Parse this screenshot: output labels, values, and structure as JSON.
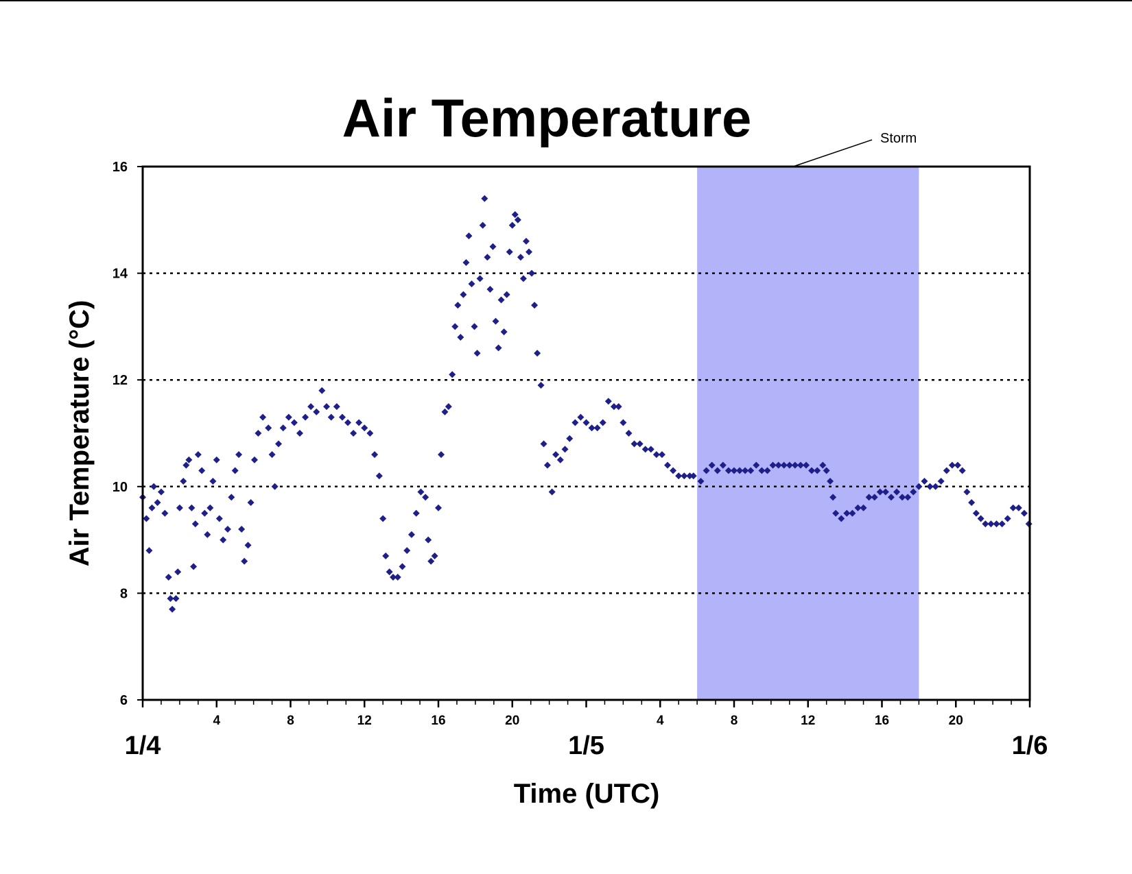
{
  "chart_data": {
    "type": "scatter",
    "title": "Air Temperature",
    "xlabel": "Time (UTC)",
    "ylabel": "Air Temperature (°C)",
    "x_unit": "hours since 1/4 00:00 UTC",
    "xlim": [
      0,
      48
    ],
    "ylim": [
      6,
      16
    ],
    "y_ticks": [
      "6",
      "8",
      "10",
      "12",
      "14",
      "16"
    ],
    "x_hour_ticks": [
      {
        "hour": 4,
        "label": "4"
      },
      {
        "hour": 8,
        "label": "8"
      },
      {
        "hour": 12,
        "label": "12"
      },
      {
        "hour": 16,
        "label": "16"
      },
      {
        "hour": 20,
        "label": "20"
      },
      {
        "hour": 28,
        "label": "4"
      },
      {
        "hour": 32,
        "label": "8"
      },
      {
        "hour": 36,
        "label": "12"
      },
      {
        "hour": 40,
        "label": "16"
      },
      {
        "hour": 44,
        "label": "20"
      }
    ],
    "x_day_ticks": [
      {
        "hour": 0,
        "label": "1/4"
      },
      {
        "hour": 24,
        "label": "1/5"
      },
      {
        "hour": 48,
        "label": "1/6"
      }
    ],
    "gridlines": [
      8,
      10,
      14,
      12
    ],
    "gridline_style": "dotted",
    "legend": "none",
    "marker": "diamond",
    "marker_color": "#1f1f8a",
    "shade_color": "#b3b3fa",
    "shaded_region": {
      "start": 30,
      "end": 42,
      "label": "Storm"
    },
    "series": [
      {
        "points": [
          [
            0.0,
            9.8
          ],
          [
            0.2,
            9.4
          ],
          [
            0.35,
            8.8
          ],
          [
            0.5,
            9.6
          ],
          [
            0.6,
            10.0
          ],
          [
            0.8,
            9.7
          ],
          [
            1.0,
            9.9
          ],
          [
            1.2,
            9.5
          ],
          [
            1.4,
            8.3
          ],
          [
            1.5,
            7.9
          ],
          [
            1.6,
            7.7
          ],
          [
            1.8,
            7.9
          ],
          [
            1.9,
            8.4
          ],
          [
            2.0,
            9.6
          ],
          [
            2.2,
            10.1
          ],
          [
            2.35,
            10.4
          ],
          [
            2.5,
            10.5
          ],
          [
            2.65,
            9.6
          ],
          [
            2.75,
            8.5
          ],
          [
            2.85,
            9.3
          ],
          [
            3.0,
            10.6
          ],
          [
            3.2,
            10.3
          ],
          [
            3.35,
            9.5
          ],
          [
            3.5,
            9.1
          ],
          [
            3.65,
            9.6
          ],
          [
            3.8,
            10.1
          ],
          [
            4.0,
            10.5
          ],
          [
            4.15,
            9.4
          ],
          [
            4.35,
            9.0
          ],
          [
            4.6,
            9.2
          ],
          [
            4.8,
            9.8
          ],
          [
            5.0,
            10.3
          ],
          [
            5.2,
            10.6
          ],
          [
            5.35,
            9.2
          ],
          [
            5.5,
            8.6
          ],
          [
            5.7,
            8.9
          ],
          [
            5.85,
            9.7
          ],
          [
            6.05,
            10.5
          ],
          [
            6.25,
            11.0
          ],
          [
            6.5,
            11.3
          ],
          [
            6.8,
            11.1
          ],
          [
            7.0,
            10.6
          ],
          [
            7.15,
            10.0
          ],
          [
            7.35,
            10.8
          ],
          [
            7.6,
            11.1
          ],
          [
            7.9,
            11.3
          ],
          [
            8.2,
            11.2
          ],
          [
            8.5,
            11.0
          ],
          [
            8.8,
            11.3
          ],
          [
            9.1,
            11.5
          ],
          [
            9.4,
            11.4
          ],
          [
            9.7,
            11.8
          ],
          [
            9.95,
            11.5
          ],
          [
            10.2,
            11.3
          ],
          [
            10.5,
            11.5
          ],
          [
            10.8,
            11.3
          ],
          [
            11.1,
            11.2
          ],
          [
            11.4,
            11.0
          ],
          [
            11.7,
            11.2
          ],
          [
            12.0,
            11.1
          ],
          [
            12.3,
            11.0
          ],
          [
            12.55,
            10.6
          ],
          [
            12.8,
            10.2
          ],
          [
            13.0,
            9.4
          ],
          [
            13.15,
            8.7
          ],
          [
            13.35,
            8.4
          ],
          [
            13.55,
            8.3
          ],
          [
            13.8,
            8.3
          ],
          [
            14.05,
            8.5
          ],
          [
            14.3,
            8.8
          ],
          [
            14.55,
            9.1
          ],
          [
            14.8,
            9.5
          ],
          [
            15.05,
            9.9
          ],
          [
            15.3,
            9.8
          ],
          [
            15.45,
            9.0
          ],
          [
            15.6,
            8.6
          ],
          [
            15.8,
            8.7
          ],
          [
            16.0,
            9.6
          ],
          [
            16.15,
            10.6
          ],
          [
            16.35,
            11.4
          ],
          [
            16.55,
            11.5
          ],
          [
            16.75,
            12.1
          ],
          [
            16.9,
            13.0
          ],
          [
            17.05,
            13.4
          ],
          [
            17.2,
            12.8
          ],
          [
            17.35,
            13.6
          ],
          [
            17.5,
            14.2
          ],
          [
            17.65,
            14.7
          ],
          [
            17.8,
            13.8
          ],
          [
            17.95,
            13.0
          ],
          [
            18.1,
            12.5
          ],
          [
            18.25,
            13.9
          ],
          [
            18.4,
            14.9
          ],
          [
            18.5,
            15.4
          ],
          [
            18.65,
            14.3
          ],
          [
            18.8,
            13.7
          ],
          [
            18.95,
            14.5
          ],
          [
            19.1,
            13.1
          ],
          [
            19.25,
            12.6
          ],
          [
            19.4,
            13.5
          ],
          [
            19.55,
            12.9
          ],
          [
            19.7,
            13.6
          ],
          [
            19.85,
            14.4
          ],
          [
            20.0,
            14.9
          ],
          [
            20.15,
            15.1
          ],
          [
            20.3,
            15.0
          ],
          [
            20.45,
            14.3
          ],
          [
            20.6,
            13.9
          ],
          [
            20.75,
            14.6
          ],
          [
            20.9,
            14.4
          ],
          [
            21.05,
            14.0
          ],
          [
            21.2,
            13.4
          ],
          [
            21.35,
            12.5
          ],
          [
            21.55,
            11.9
          ],
          [
            21.7,
            10.8
          ],
          [
            21.9,
            10.4
          ],
          [
            22.15,
            9.9
          ],
          [
            22.35,
            10.6
          ],
          [
            22.6,
            10.5
          ],
          [
            22.85,
            10.7
          ],
          [
            23.1,
            10.9
          ],
          [
            23.4,
            11.2
          ],
          [
            23.7,
            11.3
          ],
          [
            24.0,
            11.2
          ],
          [
            24.3,
            11.1
          ],
          [
            24.6,
            11.1
          ],
          [
            24.9,
            11.2
          ],
          [
            25.2,
            11.6
          ],
          [
            25.5,
            11.5
          ],
          [
            25.75,
            11.5
          ],
          [
            26.0,
            11.2
          ],
          [
            26.3,
            11.0
          ],
          [
            26.6,
            10.8
          ],
          [
            26.9,
            10.8
          ],
          [
            27.2,
            10.7
          ],
          [
            27.5,
            10.7
          ],
          [
            27.8,
            10.6
          ],
          [
            28.1,
            10.6
          ],
          [
            28.4,
            10.4
          ],
          [
            28.7,
            10.3
          ],
          [
            29.0,
            10.2
          ],
          [
            29.3,
            10.2
          ],
          [
            29.6,
            10.2
          ],
          [
            29.8,
            10.2
          ],
          [
            30.2,
            10.1
          ],
          [
            30.5,
            10.3
          ],
          [
            30.8,
            10.4
          ],
          [
            31.1,
            10.3
          ],
          [
            31.4,
            10.4
          ],
          [
            31.7,
            10.3
          ],
          [
            32.0,
            10.3
          ],
          [
            32.3,
            10.3
          ],
          [
            32.6,
            10.3
          ],
          [
            32.9,
            10.3
          ],
          [
            33.2,
            10.4
          ],
          [
            33.5,
            10.3
          ],
          [
            33.8,
            10.3
          ],
          [
            34.1,
            10.4
          ],
          [
            34.4,
            10.4
          ],
          [
            34.7,
            10.4
          ],
          [
            35.0,
            10.4
          ],
          [
            35.3,
            10.4
          ],
          [
            35.6,
            10.4
          ],
          [
            35.9,
            10.4
          ],
          [
            36.2,
            10.3
          ],
          [
            36.5,
            10.3
          ],
          [
            36.8,
            10.4
          ],
          [
            37.0,
            10.3
          ],
          [
            37.2,
            10.1
          ],
          [
            37.35,
            9.8
          ],
          [
            37.5,
            9.5
          ],
          [
            37.8,
            9.4
          ],
          [
            38.1,
            9.5
          ],
          [
            38.4,
            9.5
          ],
          [
            38.7,
            9.6
          ],
          [
            39.0,
            9.6
          ],
          [
            39.3,
            9.8
          ],
          [
            39.6,
            9.8
          ],
          [
            39.9,
            9.9
          ],
          [
            40.2,
            9.9
          ],
          [
            40.5,
            9.8
          ],
          [
            40.8,
            9.9
          ],
          [
            41.1,
            9.8
          ],
          [
            41.4,
            9.8
          ],
          [
            41.7,
            9.9
          ],
          [
            42.0,
            10.0
          ],
          [
            42.3,
            10.1
          ],
          [
            42.6,
            10.0
          ],
          [
            42.9,
            10.0
          ],
          [
            43.2,
            10.1
          ],
          [
            43.5,
            10.3
          ],
          [
            43.8,
            10.4
          ],
          [
            44.1,
            10.4
          ],
          [
            44.35,
            10.3
          ],
          [
            44.6,
            9.9
          ],
          [
            44.85,
            9.7
          ],
          [
            45.1,
            9.5
          ],
          [
            45.35,
            9.4
          ],
          [
            45.6,
            9.3
          ],
          [
            45.9,
            9.3
          ],
          [
            46.2,
            9.3
          ],
          [
            46.5,
            9.3
          ],
          [
            46.8,
            9.4
          ],
          [
            47.1,
            9.6
          ],
          [
            47.4,
            9.6
          ],
          [
            47.7,
            9.5
          ],
          [
            47.95,
            9.3
          ]
        ]
      }
    ]
  }
}
